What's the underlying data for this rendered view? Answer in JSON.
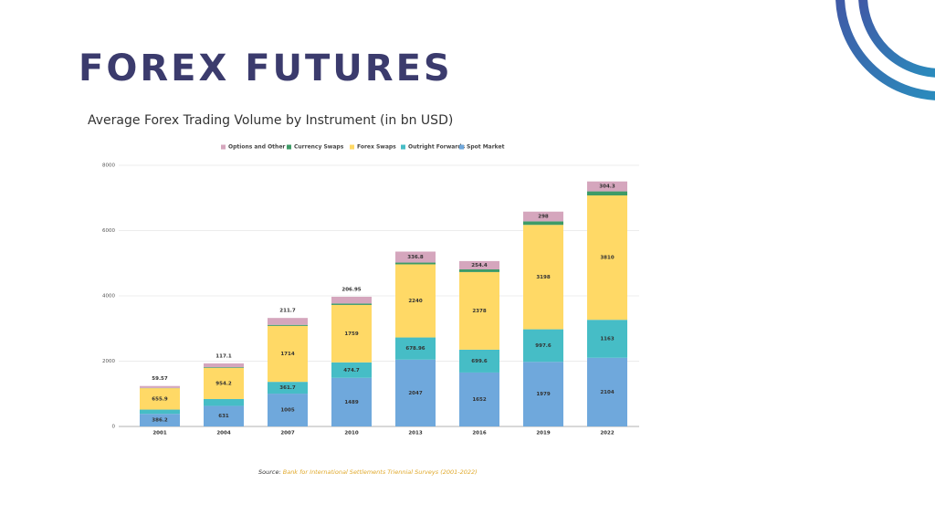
{
  "header": {
    "title": "FOREX FUTURES"
  },
  "chart_data": {
    "type": "stacked-bar",
    "title": "Average Forex Trading Volume by Instrument (in bn USD)",
    "categories": [
      "2001",
      "2004",
      "2007",
      "2010",
      "2013",
      "2016",
      "2019",
      "2022"
    ],
    "series": [
      {
        "name": "Spot Market",
        "color": "#6fa8dc",
        "values": [
          386.2,
          631,
          1005,
          1489,
          2047,
          1652,
          1979,
          2104
        ],
        "labels": true
      },
      {
        "name": "Outright Forwards",
        "color": "#46bdc6",
        "values": [
          130.3,
          208.8,
          361.7,
          474.7,
          678.96,
          699.6,
          997.6,
          1163
        ],
        "labels": true
      },
      {
        "name": "Forex Swaps",
        "color": "#ffd966",
        "values": [
          655.9,
          954.2,
          1714,
          1759,
          2240,
          2378,
          3198,
          3810
        ],
        "labels": true
      },
      {
        "name": "Currency Swaps",
        "color": "#3e9b67",
        "values": [
          7,
          21,
          31,
          43,
          54,
          82,
          108,
          124
        ],
        "labels": false
      },
      {
        "name": "Options and Other",
        "color": "#d5a6bd",
        "values": [
          59.57,
          117.1,
          211.7,
          206.95,
          336.8,
          254.4,
          298,
          304.3
        ],
        "labels": true
      }
    ],
    "ylim": [
      0,
      8000
    ],
    "yticks": [
      0,
      2000,
      4000,
      6000,
      8000
    ],
    "grid": true,
    "legend": "top"
  },
  "footer": {
    "source_label": "Source:",
    "source": "Bank for International Settlements Triennial Surveys (2001-2022)"
  }
}
